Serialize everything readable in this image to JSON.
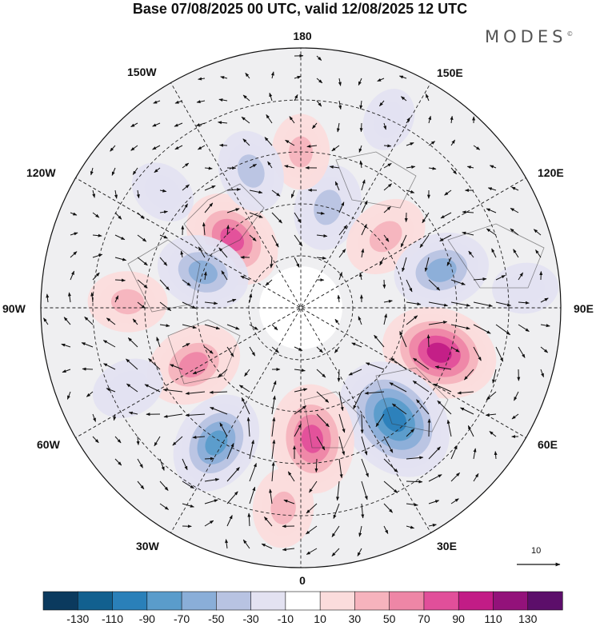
{
  "title": "Base 07/08/2025 00 UTC, valid 12/08/2025 12 UTC",
  "brand": "MODES",
  "brand_mark": "©",
  "longitude_labels": {
    "top": "180",
    "bottom": "0",
    "left": "90W",
    "right": "90E",
    "upper_left_1": "150W",
    "upper_left_2": "120W",
    "upper_right_1": "150E",
    "upper_right_2": "120E",
    "lower_left_1": "60W",
    "lower_left_2": "30W",
    "lower_right_1": "60E",
    "lower_right_2": "30E"
  },
  "reference_vector": "10",
  "colorbar": {
    "colors": [
      "#0b3a5e",
      "#12608f",
      "#2a80b9",
      "#5a9ccb",
      "#8aaed8",
      "#b8c3e2",
      "#e3e2f1",
      "#ffffff",
      "#fbdcdc",
      "#f6b3bd",
      "#ee86a6",
      "#e14f9a",
      "#c21c86",
      "#93127a",
      "#5c0e6a"
    ],
    "labels": [
      "-130",
      "-110",
      "-90",
      "-70",
      "-50",
      "-30",
      "-10",
      "10",
      "30",
      "50",
      "70",
      "90",
      "110",
      "130"
    ]
  },
  "anomaly_centers": [
    {
      "lon": -135,
      "lat": 62,
      "value": 72
    },
    {
      "lon": 165,
      "lat": 60,
      "value": -48
    },
    {
      "lon": 180,
      "lat": 45,
      "value": 32
    },
    {
      "lon": -160,
      "lat": 48,
      "value": -42
    },
    {
      "lon": 130,
      "lat": 58,
      "value": 48
    },
    {
      "lon": 105,
      "lat": 48,
      "value": -62
    },
    {
      "lon": 72,
      "lat": 48,
      "value": 92
    },
    {
      "lon": 40,
      "lat": 48,
      "value": -108
    },
    {
      "lon": 5,
      "lat": 52,
      "value": 82
    },
    {
      "lon": -5,
      "lat": 32,
      "value": 38
    },
    {
      "lon": -32,
      "lat": 44,
      "value": -72
    },
    {
      "lon": -62,
      "lat": 55,
      "value": 64
    },
    {
      "lon": -65,
      "lat": 35,
      "value": -28
    },
    {
      "lon": -110,
      "lat": 60,
      "value": -58
    },
    {
      "lon": -92,
      "lat": 40,
      "value": 38
    },
    {
      "lon": -130,
      "lat": 38,
      "value": -20
    },
    {
      "lon": 95,
      "lat": 25,
      "value": -18
    },
    {
      "lon": 155,
      "lat": 30,
      "value": -14
    }
  ]
}
